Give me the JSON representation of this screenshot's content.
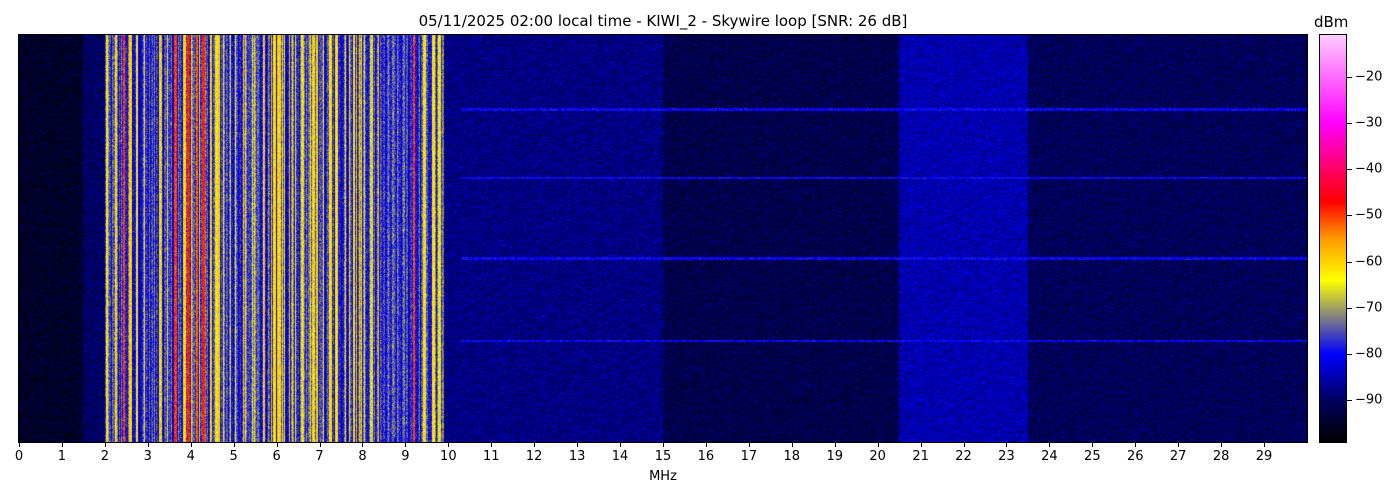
{
  "chart_data": {
    "type": "heatmap",
    "title": "05/11/2025 02:00 local time - KIWI_2 - Skywire loop [SNR: 26 dB]",
    "xlabel": "MHz",
    "xlim": [
      0,
      30
    ],
    "xticks": [
      "0",
      "1",
      "2",
      "3",
      "4",
      "5",
      "6",
      "7",
      "8",
      "9",
      "10",
      "11",
      "12",
      "13",
      "14",
      "15",
      "16",
      "17",
      "18",
      "19",
      "20",
      "21",
      "22",
      "23",
      "24",
      "25",
      "26",
      "27",
      "28",
      "29"
    ],
    "colorbar": {
      "label": "dBm",
      "clim": [
        -99,
        -11
      ],
      "ticks": [
        "-20",
        "-30",
        "-40",
        "-50",
        "-60",
        "-70",
        "-80",
        "-90"
      ],
      "colors": [
        "#000000",
        "#000060",
        "#0000ff",
        "#808080",
        "#ffff00",
        "#ff9900",
        "#ff0000",
        "#ff00ff",
        "#ffccff"
      ]
    },
    "noise_floor_dbm": [
      {
        "from_mhz": 0,
        "to_mhz": 1.5,
        "level": -95
      },
      {
        "from_mhz": 1.5,
        "to_mhz": 2.0,
        "level": -90
      },
      {
        "from_mhz": 2.0,
        "to_mhz": 9.9,
        "level": -78
      },
      {
        "from_mhz": 9.9,
        "to_mhz": 15,
        "level": -88
      },
      {
        "from_mhz": 15,
        "to_mhz": 20.5,
        "level": -92
      },
      {
        "from_mhz": 20.5,
        "to_mhz": 23.5,
        "level": -85
      },
      {
        "from_mhz": 23.5,
        "to_mhz": 30,
        "level": -91
      }
    ],
    "strong_signals_mhz": [
      {
        "f": 2.05,
        "level": -63
      },
      {
        "f": 2.45,
        "level": -50
      },
      {
        "f": 2.6,
        "level": -60
      },
      {
        "f": 2.75,
        "level": -63
      },
      {
        "f": 3.3,
        "level": -66
      },
      {
        "f": 3.65,
        "level": -50
      },
      {
        "f": 3.95,
        "level": -48
      },
      {
        "f": 4.15,
        "level": -52
      },
      {
        "f": 4.3,
        "level": -48
      },
      {
        "f": 4.6,
        "level": -64
      },
      {
        "f": 5.95,
        "level": -62
      },
      {
        "f": 6.05,
        "level": -60
      },
      {
        "f": 6.6,
        "level": -66
      },
      {
        "f": 7.25,
        "level": -62
      },
      {
        "f": 7.4,
        "level": -62
      },
      {
        "f": 7.8,
        "level": -64
      },
      {
        "f": 8.2,
        "level": -66
      },
      {
        "f": 9.2,
        "level": -50
      },
      {
        "f": 9.45,
        "level": -64
      },
      {
        "f": 9.65,
        "level": -62
      },
      {
        "f": 9.8,
        "level": -64
      }
    ]
  }
}
